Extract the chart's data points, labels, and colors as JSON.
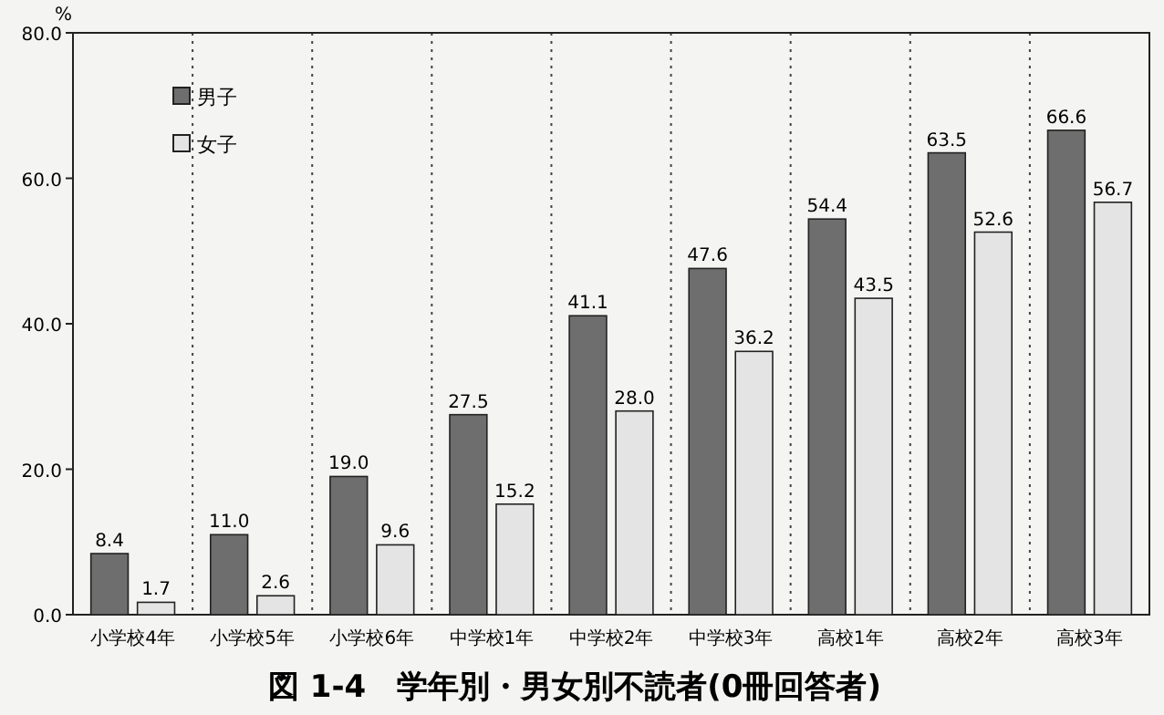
{
  "chart_data": {
    "type": "bar",
    "title": "図 1-4　学年別・男女別不読者(0冊回答者)",
    "ylabel": "%",
    "categories": [
      "小学校4年",
      "小学校5年",
      "小学校6年",
      "中学校1年",
      "中学校2年",
      "中学校3年",
      "高校1年",
      "高校2年",
      "高校3年"
    ],
    "series": [
      {
        "name": "男子",
        "color": "#6e6e6e",
        "values": [
          8.4,
          11.0,
          19.0,
          27.5,
          41.1,
          47.6,
          54.4,
          63.5,
          66.6
        ],
        "value_labels": [
          "8.4",
          "11.0",
          "19.0",
          "27.5",
          "41.1",
          "47.6",
          "54.4",
          "63.5",
          "66.6"
        ]
      },
      {
        "name": "女子",
        "color": "#e4e4e4",
        "values": [
          1.7,
          2.6,
          9.6,
          15.2,
          28.0,
          36.2,
          43.5,
          52.6,
          56.7
        ],
        "value_labels": [
          "1.7",
          "2.6",
          "9.6",
          "15.2",
          "28.0",
          "36.2",
          "43.5",
          "52.6",
          "56.7"
        ]
      }
    ],
    "ylim": [
      0,
      80
    ],
    "yticks": [
      {
        "value": 0,
        "label": "0.0"
      },
      {
        "value": 20,
        "label": "20.0"
      },
      {
        "value": 40,
        "label": "40.0"
      },
      {
        "value": 60,
        "label": "60.0"
      },
      {
        "value": 80,
        "label": "80.0"
      }
    ],
    "grid": "x",
    "legend": "top left"
  }
}
